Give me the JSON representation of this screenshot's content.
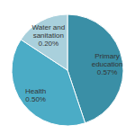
{
  "chart_data": {
    "type": "pie",
    "categories": [
      "Primary education",
      "Health",
      "Water and sanitation"
    ],
    "values": [
      0.57,
      0.5,
      0.2
    ],
    "value_labels": [
      "0.57%",
      "0.50%",
      "0.20%"
    ],
    "colors": [
      "#3a8fa6",
      "#4bacc6",
      "#a9d0dc"
    ],
    "data_labels": true
  }
}
